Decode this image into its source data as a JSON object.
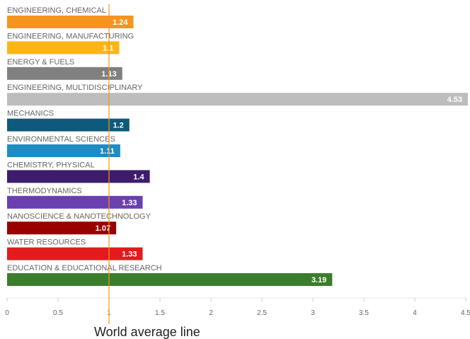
{
  "chart_data": {
    "type": "bar",
    "orientation": "horizontal",
    "categories": [
      "ENGINEERING, CHEMICAL",
      "ENGINEERING, MANUFACTURING",
      "ENERGY & FUELS",
      "ENGINEERING, MULTIDISCIPLINARY",
      "MECHANICS",
      "ENVIRONMENTAL SCIENCES",
      "CHEMISTRY, PHYSICAL",
      "THERMODYNAMICS",
      "NANOSCIENCE & NANOTECHNOLOGY",
      "WATER RESOURCES",
      "EDUCATION & EDUCATIONAL RESEARCH"
    ],
    "values": [
      1.24,
      1.1,
      1.13,
      4.53,
      1.2,
      1.11,
      1.4,
      1.33,
      1.07,
      1.33,
      3.19
    ],
    "value_labels": [
      "1.24",
      "1.1",
      "1.13",
      "4.53",
      "1.2",
      "1.11",
      "1.4",
      "1.33",
      "1.07",
      "1.33",
      "3.19"
    ],
    "colors": [
      "#f7941d",
      "#fdb515",
      "#808080",
      "#bdbdbd",
      "#0e5a7c",
      "#1e8bc3",
      "#3d1c6b",
      "#6a40b0",
      "#990000",
      "#e41a1c",
      "#3a7d2c"
    ],
    "xlim": [
      0,
      4.5
    ],
    "xticks": [
      0,
      0.5,
      1,
      1.5,
      2,
      2.5,
      3,
      3.5,
      4,
      4.5
    ],
    "xtick_labels": [
      "0",
      "0.5",
      "1",
      "1.5",
      "2",
      "2.5",
      "3",
      "3.5",
      "4",
      "4.5"
    ],
    "grid": false,
    "reference_line": {
      "value": 1,
      "label": "World average line",
      "color": "#f7941d"
    }
  }
}
